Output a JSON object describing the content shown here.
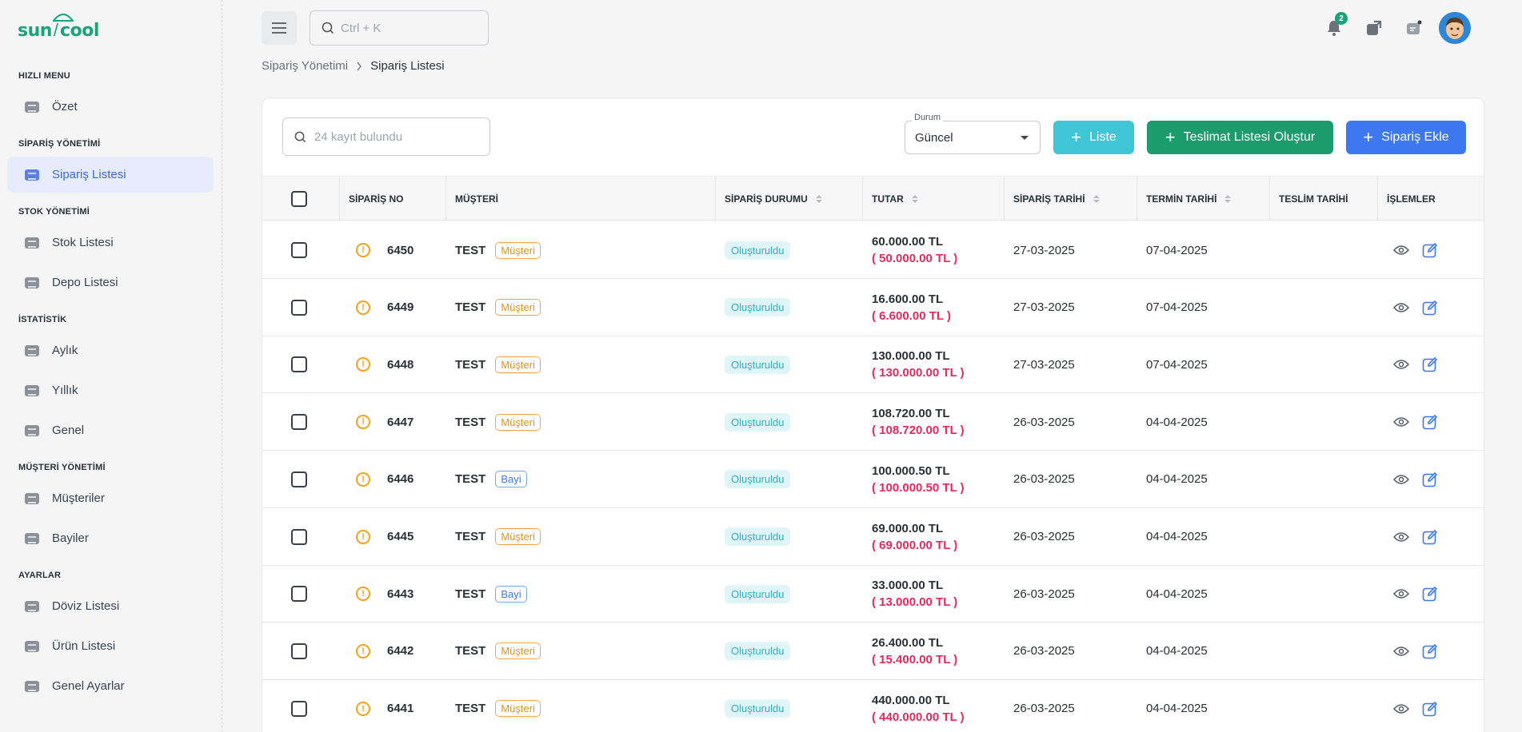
{
  "brand": {
    "logo_left": "sun",
    "logo_right": "cool",
    "primary_color": "#1aa37a",
    "accent_color": "#3e66e6"
  },
  "sidebar": {
    "sections": [
      {
        "title": "HIZLI MENU",
        "items": [
          {
            "label": "Özet",
            "active": false
          }
        ]
      },
      {
        "title": "SİPARİŞ YÖNETİMİ",
        "items": [
          {
            "label": "Sipariş Listesi",
            "active": true
          }
        ]
      },
      {
        "title": "STOK YÖNETİMİ",
        "items": [
          {
            "label": "Stok Listesi",
            "active": false
          },
          {
            "label": "Depo Listesi",
            "active": false
          }
        ]
      },
      {
        "title": "İSTATİSTİK",
        "items": [
          {
            "label": "Aylık",
            "active": false
          },
          {
            "label": "Yıllık",
            "active": false
          },
          {
            "label": "Genel",
            "active": false
          }
        ]
      },
      {
        "title": "MÜŞTERİ YÖNETİMİ",
        "items": [
          {
            "label": "Müşteriler",
            "active": false
          },
          {
            "label": "Bayiler",
            "active": false
          }
        ]
      },
      {
        "title": "AYARLAR",
        "items": [
          {
            "label": "Döviz Listesi",
            "active": false
          },
          {
            "label": "Ürün Listesi",
            "active": false
          },
          {
            "label": "Genel Ayarlar",
            "active": false
          }
        ]
      }
    ]
  },
  "topbar": {
    "search_placeholder": "Ctrl + K",
    "notification_count": "2",
    "icons": [
      "menu-icon",
      "search-icon",
      "bell-icon",
      "external-link-icon",
      "chat-icon",
      "avatar"
    ]
  },
  "breadcrumb": {
    "parent": "Sipariş Yönetimi",
    "current": "Sipariş Listesi"
  },
  "toolbar": {
    "search_placeholder": "24 kayıt bulundu",
    "status_label": "Durum",
    "status_value": "Güncel",
    "btn_liste": "Liste",
    "btn_teslimat": "Teslimat Listesi Oluştur",
    "btn_siparis": "Sipariş Ekle"
  },
  "table": {
    "headers": {
      "order_no": "SİPARİŞ NO",
      "customer": "MÜŞTERİ",
      "order_status": "SİPARİŞ DURUMU",
      "amount": "TUTAR",
      "order_date": "SİPARİŞ TARİHİ",
      "due_date": "TERMİN TARİHİ",
      "delivery_date": "TESLİM TARİHİ",
      "actions": "İŞLEMLER"
    },
    "rows": [
      {
        "no": "6450",
        "customer": "TEST",
        "type": "Müşteri",
        "status": "Oluşturuldu",
        "amount": "60.000.00 TL",
        "remaining": "( 50.000.00 TL )",
        "order_date": "27-03-2025",
        "due_date": "07-04-2025",
        "delivery_date": ""
      },
      {
        "no": "6449",
        "customer": "TEST",
        "type": "Müşteri",
        "status": "Oluşturuldu",
        "amount": "16.600.00 TL",
        "remaining": "( 6.600.00 TL )",
        "order_date": "27-03-2025",
        "due_date": "07-04-2025",
        "delivery_date": ""
      },
      {
        "no": "6448",
        "customer": "TEST",
        "type": "Müşteri",
        "status": "Oluşturuldu",
        "amount": "130.000.00 TL",
        "remaining": "( 130.000.00 TL )",
        "order_date": "27-03-2025",
        "due_date": "07-04-2025",
        "delivery_date": ""
      },
      {
        "no": "6447",
        "customer": "TEST",
        "type": "Müşteri",
        "status": "Oluşturuldu",
        "amount": "108.720.00 TL",
        "remaining": "( 108.720.00 TL )",
        "order_date": "26-03-2025",
        "due_date": "04-04-2025",
        "delivery_date": ""
      },
      {
        "no": "6446",
        "customer": "TEST",
        "type": "Bayi",
        "status": "Oluşturuldu",
        "amount": "100.000.50 TL",
        "remaining": "( 100.000.50 TL )",
        "order_date": "26-03-2025",
        "due_date": "04-04-2025",
        "delivery_date": ""
      },
      {
        "no": "6445",
        "customer": "TEST",
        "type": "Müşteri",
        "status": "Oluşturuldu",
        "amount": "69.000.00 TL",
        "remaining": "( 69.000.00 TL )",
        "order_date": "26-03-2025",
        "due_date": "04-04-2025",
        "delivery_date": ""
      },
      {
        "no": "6443",
        "customer": "TEST",
        "type": "Bayi",
        "status": "Oluşturuldu",
        "amount": "33.000.00 TL",
        "remaining": "( 13.000.00 TL )",
        "order_date": "26-03-2025",
        "due_date": "04-04-2025",
        "delivery_date": ""
      },
      {
        "no": "6442",
        "customer": "TEST",
        "type": "Müşteri",
        "status": "Oluşturuldu",
        "amount": "26.400.00 TL",
        "remaining": "( 15.400.00 TL )",
        "order_date": "26-03-2025",
        "due_date": "04-04-2025",
        "delivery_date": ""
      },
      {
        "no": "6441",
        "customer": "TEST",
        "type": "Müşteri",
        "status": "Oluşturuldu",
        "amount": "440.000.00 TL",
        "remaining": "( 440.000.00 TL )",
        "order_date": "26-03-2025",
        "due_date": "04-04-2025",
        "delivery_date": ""
      }
    ]
  }
}
